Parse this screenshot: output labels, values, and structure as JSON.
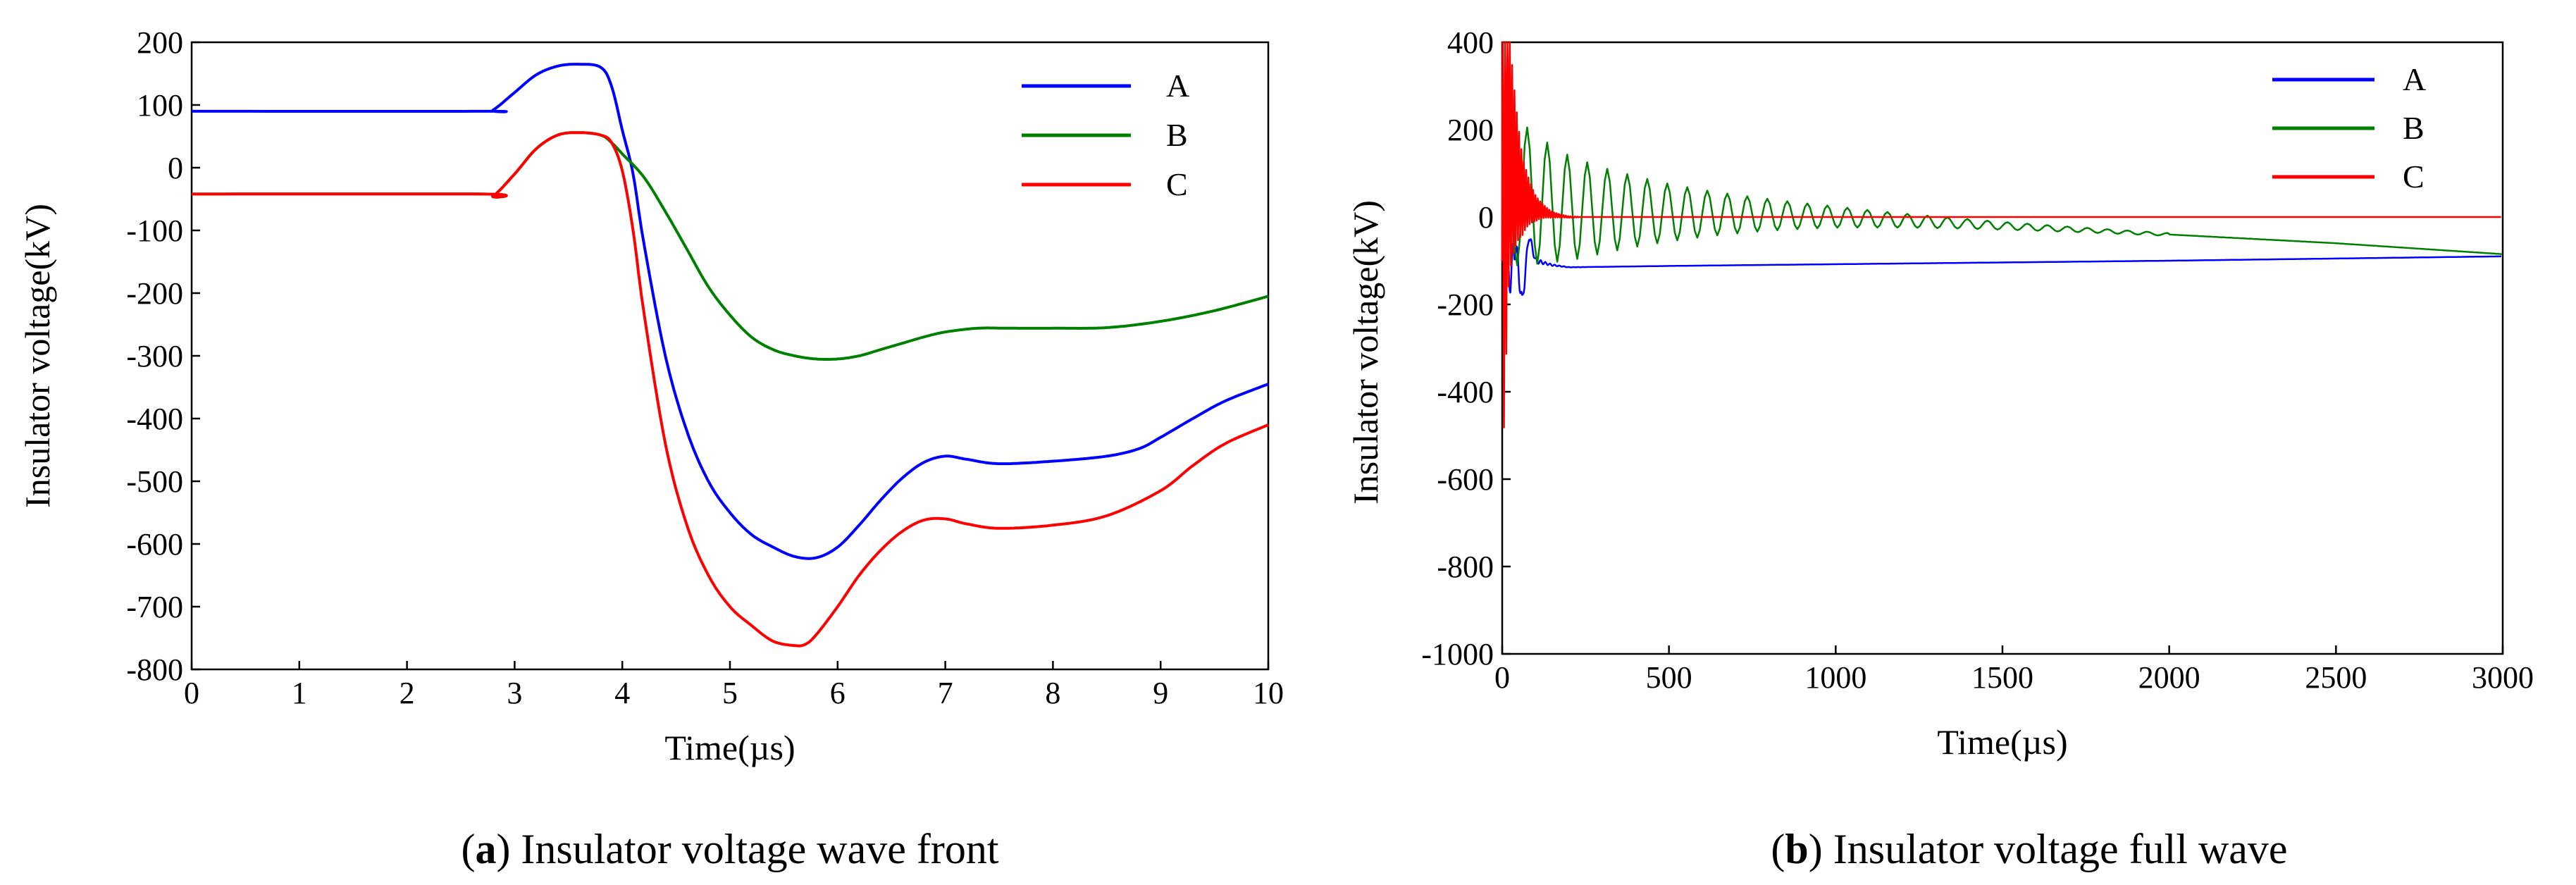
{
  "chart_data": [
    {
      "type": "line",
      "id": "a",
      "caption_letter": "a",
      "caption_rest": " Insulator voltage wave front",
      "xlabel": "Time(µs)",
      "ylabel": "Insulator voltage(kV)",
      "xlim": [
        0,
        10
      ],
      "ylim": [
        -800,
        200
      ],
      "xticks": [
        0,
        1,
        2,
        3,
        4,
        5,
        6,
        7,
        8,
        9,
        10
      ],
      "yticks": [
        200,
        100,
        0,
        -100,
        -200,
        -300,
        -400,
        -500,
        -600,
        -700,
        -800
      ],
      "legend_position": "top-right",
      "series": [
        {
          "name": "A",
          "color": "#0000ff",
          "x": [
            0,
            2.7,
            2.8,
            3.0,
            3.2,
            3.4,
            3.6,
            3.8,
            3.9,
            4.0,
            4.1,
            4.2,
            4.4,
            4.6,
            4.8,
            5.0,
            5.2,
            5.4,
            5.6,
            5.8,
            6.0,
            6.2,
            6.4,
            6.6,
            6.8,
            7.0,
            7.2,
            7.5,
            8.0,
            8.5,
            8.8,
            9.0,
            9.3,
            9.6,
            10.0
          ],
          "y": [
            90,
            90,
            92,
            120,
            148,
            162,
            165,
            160,
            130,
            60,
            -10,
            -120,
            -300,
            -420,
            -500,
            -550,
            -585,
            -605,
            -620,
            -622,
            -605,
            -570,
            -530,
            -495,
            -470,
            -460,
            -465,
            -472,
            -468,
            -460,
            -448,
            -430,
            -400,
            -372,
            -345
          ]
        },
        {
          "name": "B",
          "color": "#008000",
          "x": [
            0,
            2.7,
            2.8,
            3.0,
            3.2,
            3.4,
            3.6,
            3.8,
            3.9,
            4.0,
            4.2,
            4.4,
            4.6,
            4.8,
            5.0,
            5.2,
            5.4,
            5.6,
            5.8,
            6.0,
            6.2,
            6.4,
            6.6,
            6.8,
            7.0,
            7.3,
            7.6,
            8.0,
            8.5,
            9.0,
            9.5,
            10.0
          ],
          "y": [
            -42,
            -42,
            -45,
            -10,
            30,
            52,
            56,
            52,
            40,
            22,
            -15,
            -70,
            -130,
            -190,
            -235,
            -270,
            -290,
            -300,
            -305,
            -305,
            -300,
            -290,
            -280,
            -270,
            -262,
            -256,
            -256,
            -256,
            -255,
            -245,
            -228,
            -205
          ]
        },
        {
          "name": "C",
          "color": "#ff0000",
          "x": [
            0,
            2.7,
            2.8,
            3.0,
            3.2,
            3.4,
            3.6,
            3.8,
            3.9,
            4.0,
            4.1,
            4.2,
            4.4,
            4.6,
            4.8,
            5.0,
            5.2,
            5.4,
            5.6,
            5.7,
            5.8,
            6.0,
            6.2,
            6.4,
            6.6,
            6.8,
            7.0,
            7.2,
            7.5,
            8.0,
            8.5,
            9.0,
            9.3,
            9.6,
            10.0
          ],
          "y": [
            -42,
            -42,
            -45,
            -10,
            30,
            52,
            56,
            52,
            40,
            -5,
            -100,
            -230,
            -440,
            -570,
            -650,
            -700,
            -730,
            -755,
            -762,
            -760,
            -745,
            -700,
            -650,
            -610,
            -580,
            -562,
            -560,
            -568,
            -575,
            -570,
            -555,
            -515,
            -475,
            -440,
            -410
          ]
        }
      ]
    },
    {
      "type": "line",
      "id": "b",
      "caption_letter": "b",
      "caption_rest": " Insulator voltage full wave",
      "xlabel": "Time(µs)",
      "ylabel": "Insulator voltage(kV)",
      "xlim": [
        0,
        3000
      ],
      "ylim": [
        -1000,
        400
      ],
      "xticks": [
        0,
        500,
        1000,
        1500,
        2000,
        2500,
        3000
      ],
      "yticks": [
        400,
        200,
        0,
        -200,
        -400,
        -600,
        -800,
        -1000
      ],
      "legend_position": "top-right",
      "series": [
        {
          "name": "A",
          "color": "#0000ff",
          "x": [
            0,
            20,
            40,
            60,
            80,
            100,
            150,
            200,
            500,
            1000,
            1500,
            2000,
            2500,
            3000
          ],
          "y": [
            0,
            -150,
            -60,
            -200,
            -40,
            -100,
            -110,
            -115,
            -112,
            -108,
            -104,
            -100,
            -95,
            -90
          ],
          "osc": {
            "amp": 80,
            "period": 14,
            "decay": 40,
            "until": 260
          }
        },
        {
          "name": "B",
          "color": "#008000",
          "x": [
            0,
            50,
            100,
            200,
            300,
            500,
            800,
            1000,
            1500,
            2000,
            2500,
            3000
          ],
          "y": [
            0,
            60,
            40,
            20,
            15,
            10,
            5,
            0,
            -20,
            -40,
            -60,
            -85
          ],
          "osc": {
            "amp": 180,
            "period": 60,
            "decay": 500,
            "until": 2000
          }
        },
        {
          "name": "C",
          "color": "#ff0000",
          "x": [
            0,
            20,
            40,
            60,
            100,
            150,
            200,
            300,
            500,
            1000,
            2000,
            3000
          ],
          "y": [
            -100,
            150,
            100,
            50,
            20,
            5,
            0,
            0,
            0,
            0,
            0,
            0
          ],
          "osc": {
            "amp": 520,
            "period": 7,
            "decay": 35,
            "until": 230
          }
        }
      ]
    }
  ]
}
